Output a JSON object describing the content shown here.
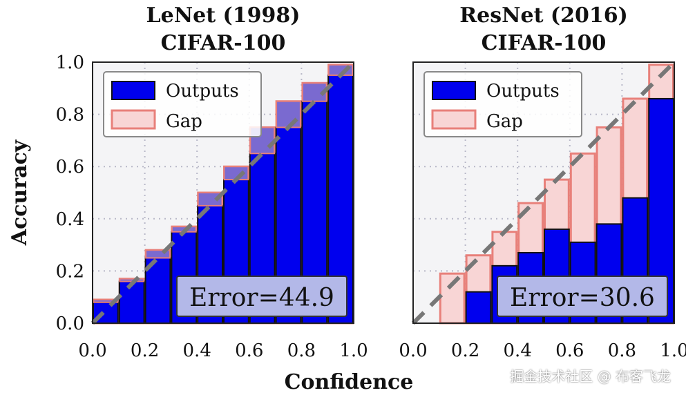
{
  "chart_data": [
    {
      "type": "bar",
      "title": "LeNet (1998)",
      "subtitle": "CIFAR-100",
      "xlabel": "Confidence",
      "ylabel": "Accuracy",
      "xlim": [
        0,
        1
      ],
      "ylim": [
        0,
        1
      ],
      "xticks": [
        "0.0",
        "0.2",
        "0.4",
        "0.6",
        "0.8",
        "1.0"
      ],
      "yticks": [
        "0.0",
        "0.2",
        "0.4",
        "0.6",
        "0.8",
        "1.0"
      ],
      "grid": true,
      "legend": {
        "placement": "top-left",
        "entries": [
          "Outputs",
          "Gap"
        ]
      },
      "bin_edges": [
        0.0,
        0.1,
        0.2,
        0.3,
        0.4,
        0.5,
        0.6,
        0.7,
        0.8,
        0.9,
        1.0
      ],
      "series": [
        {
          "name": "Outputs",
          "values": [
            0.08,
            0.16,
            0.25,
            0.35,
            0.45,
            0.55,
            0.65,
            0.75,
            0.85,
            0.95
          ]
        },
        {
          "name": "Gap",
          "values": [
            0.09,
            0.17,
            0.28,
            0.37,
            0.5,
            0.6,
            0.75,
            0.85,
            0.92,
            0.99
          ]
        }
      ],
      "annotation": "Error=44.9",
      "diagonal": true
    },
    {
      "type": "bar",
      "title": "ResNet (2016)",
      "subtitle": "CIFAR-100",
      "xlabel": "Confidence",
      "xlim": [
        0,
        1
      ],
      "ylim": [
        0,
        1
      ],
      "xticks": [
        "0.0",
        "0.2",
        "0.4",
        "0.6",
        "0.8",
        "1.0"
      ],
      "grid": true,
      "legend": {
        "placement": "top-left",
        "entries": [
          "Outputs",
          "Gap"
        ]
      },
      "bin_edges": [
        0.0,
        0.1,
        0.2,
        0.3,
        0.4,
        0.5,
        0.6,
        0.7,
        0.8,
        0.9,
        1.0
      ],
      "series": [
        {
          "name": "Outputs",
          "values": [
            0.0,
            0.0,
            0.12,
            0.22,
            0.27,
            0.36,
            0.31,
            0.38,
            0.48,
            0.86
          ]
        },
        {
          "name": "Gap",
          "values": [
            0.0,
            0.19,
            0.26,
            0.35,
            0.46,
            0.55,
            0.65,
            0.75,
            0.86,
            0.99
          ]
        }
      ],
      "annotation": "Error=30.6",
      "diagonal": true
    }
  ],
  "colors": {
    "outputs": "#0000ee",
    "gap_fill": "#f8d5d5",
    "gap_edge": "#e8807a",
    "overlap": "#7a6ad0",
    "diagonal": "#777777",
    "plot_bg": "#f4f4f6",
    "annotation_box": "#b3b8e8"
  },
  "watermark": "掘金技术社区 @ 布客飞龙"
}
